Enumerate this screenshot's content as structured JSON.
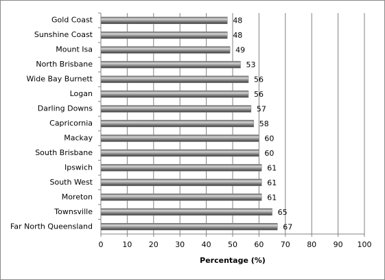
{
  "chart_data": {
    "type": "bar",
    "orientation": "horizontal",
    "categories": [
      "Gold Coast",
      "Sunshine Coast",
      "Mount Isa",
      "North Brisbane",
      "Wide Bay Burnett",
      "Logan",
      "Darling Downs",
      "Capricornia",
      "Mackay",
      "South Brisbane",
      "Ipswich",
      "South West",
      "Moreton",
      "Townsville",
      "Far North Queensland"
    ],
    "values": [
      48,
      48,
      49,
      53,
      56,
      56,
      57,
      58,
      60,
      60,
      61,
      61,
      61,
      65,
      67
    ],
    "color": "#808080",
    "x_label": "Percentage (%)",
    "xlim": [
      0,
      100
    ],
    "xticks": [
      0,
      10,
      20,
      30,
      40,
      50,
      60,
      70,
      80,
      90,
      100
    ],
    "grid": true
  }
}
